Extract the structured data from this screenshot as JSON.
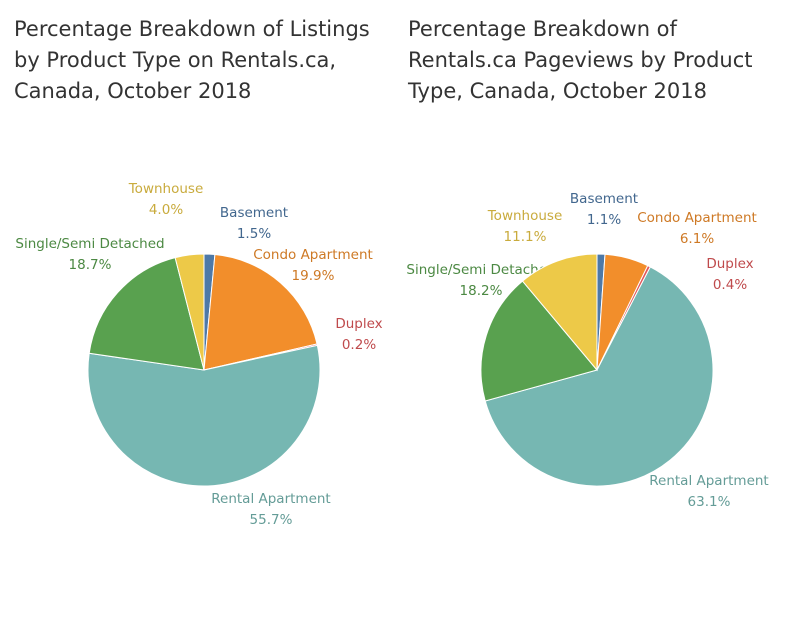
{
  "chart_data": [
    {
      "type": "pie",
      "title": "Percentage Breakdown of Listings by Product Type on Rentals.ca, Canada, October 2018",
      "unit": "%",
      "slices": [
        {
          "name": "Basement",
          "label": "1.5%",
          "value": 1.5,
          "color": "#4e79a7"
        },
        {
          "name": "Condo Apartment",
          "label": "19.9%",
          "value": 19.9,
          "color": "#f28e2b"
        },
        {
          "name": "Duplex",
          "label": "0.2%",
          "value": 0.2,
          "color": "#e15759"
        },
        {
          "name": "Rental Apartment",
          "label": "55.7%",
          "value": 55.7,
          "color": "#76b7b2"
        },
        {
          "name": "Single/Semi Detached",
          "label": "18.7%",
          "value": 18.7,
          "color": "#59a14f"
        },
        {
          "name": "Townhouse",
          "label": "4.0%",
          "value": 4.0,
          "color": "#edc948"
        }
      ]
    },
    {
      "type": "pie",
      "title": "Percentage Breakdown of Rentals.ca Pageviews by Product Type, Canada, October 2018",
      "unit": "%",
      "slices": [
        {
          "name": "Basement",
          "label": "1.1%",
          "value": 1.1,
          "color": "#4e79a7"
        },
        {
          "name": "Condo Apartment",
          "label": "6.1%",
          "value": 6.1,
          "color": "#f28e2b"
        },
        {
          "name": "Duplex",
          "label": "0.4%",
          "value": 0.4,
          "color": "#e15759"
        },
        {
          "name": "Rental Apartment",
          "label": "63.1%",
          "value": 63.1,
          "color": "#76b7b2"
        },
        {
          "name": "Single/Semi Detached",
          "label": "18.2%",
          "value": 18.2,
          "color": "#59a14f"
        },
        {
          "name": "Townhouse",
          "label": "11.1%",
          "value": 11.1,
          "color": "#edc948"
        }
      ]
    }
  ]
}
